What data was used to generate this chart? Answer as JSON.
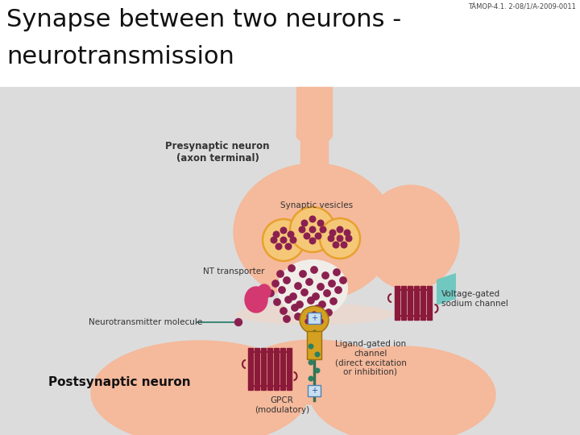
{
  "title_line1": "Synapse between two neurons -",
  "title_line2": "neurotransmission",
  "tamop_text": "TÁMOP-4.1. 2-08/1/A-2009-0011",
  "bg_color": "#dcdcdc",
  "white_bg": "#ffffff",
  "neuron_color": "#f5b99b",
  "presynaptic_label": "Presynaptic neuron\n(axon terminal)",
  "synaptic_vesicles_label": "Synaptic vesicles",
  "nt_transporter_label": "NT transporter",
  "neurotransmitter_label": "Neurotransmitter molecule",
  "postsynaptic_label": "Postsynaptic neuron",
  "gpcr_label": "GPCR\n(modulatory)",
  "ligand_label": "Ligand-gated ion\nchannel\n(direct excitation\nor inhibition)",
  "voltage_label": "Voltage-gated\nsodium channel",
  "vesicle_fill": "#f5c878",
  "vesicle_edge": "#e8a030",
  "dot_color": "#8b2050",
  "nt_transporter_color": "#d43870",
  "channel_color": "#8b1a3a",
  "ligand_channel_color": "#d4a020",
  "teal_channel_color": "#70c8c0"
}
